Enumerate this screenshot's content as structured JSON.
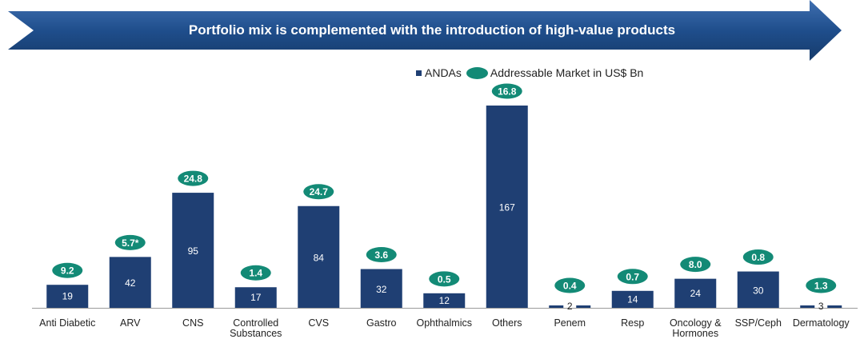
{
  "banner": {
    "title": "Portfolio mix is complemented with the introduction of high-value products"
  },
  "legend": {
    "andas_label": "ANDAs",
    "market_label": "Addressable Market in US$ Bn"
  },
  "colors": {
    "bar": "#1f3f73",
    "badge": "#138a76",
    "banner": "#1f4e8c"
  },
  "chart_data": {
    "type": "bar",
    "title": "Portfolio mix is complemented with the introduction of high-value products",
    "categories": [
      [
        "Anti Diabetic"
      ],
      [
        "ARV"
      ],
      [
        "CNS"
      ],
      [
        "Controlled",
        "Substances"
      ],
      [
        "CVS"
      ],
      [
        "Gastro"
      ],
      [
        "Ophthalmics"
      ],
      [
        "Others"
      ],
      [
        "Penem"
      ],
      [
        "Resp"
      ],
      [
        "Oncology &",
        "Hormones"
      ],
      [
        "SSP/Ceph"
      ],
      [
        "Dermatology"
      ]
    ],
    "series": [
      {
        "name": "ANDAs",
        "values": [
          19,
          42,
          95,
          17,
          84,
          32,
          12,
          167,
          2,
          14,
          24,
          30,
          3
        ]
      },
      {
        "name": "Addressable Market in US$ Bn",
        "values": [
          "9.2",
          "5.7*",
          "24.8",
          "1.4",
          "24.7",
          "3.6",
          "0.5",
          "16.8",
          "0.4",
          "0.7",
          "8.0",
          "0.8",
          "1.3"
        ]
      }
    ],
    "ylim": [
      0,
      167
    ]
  }
}
